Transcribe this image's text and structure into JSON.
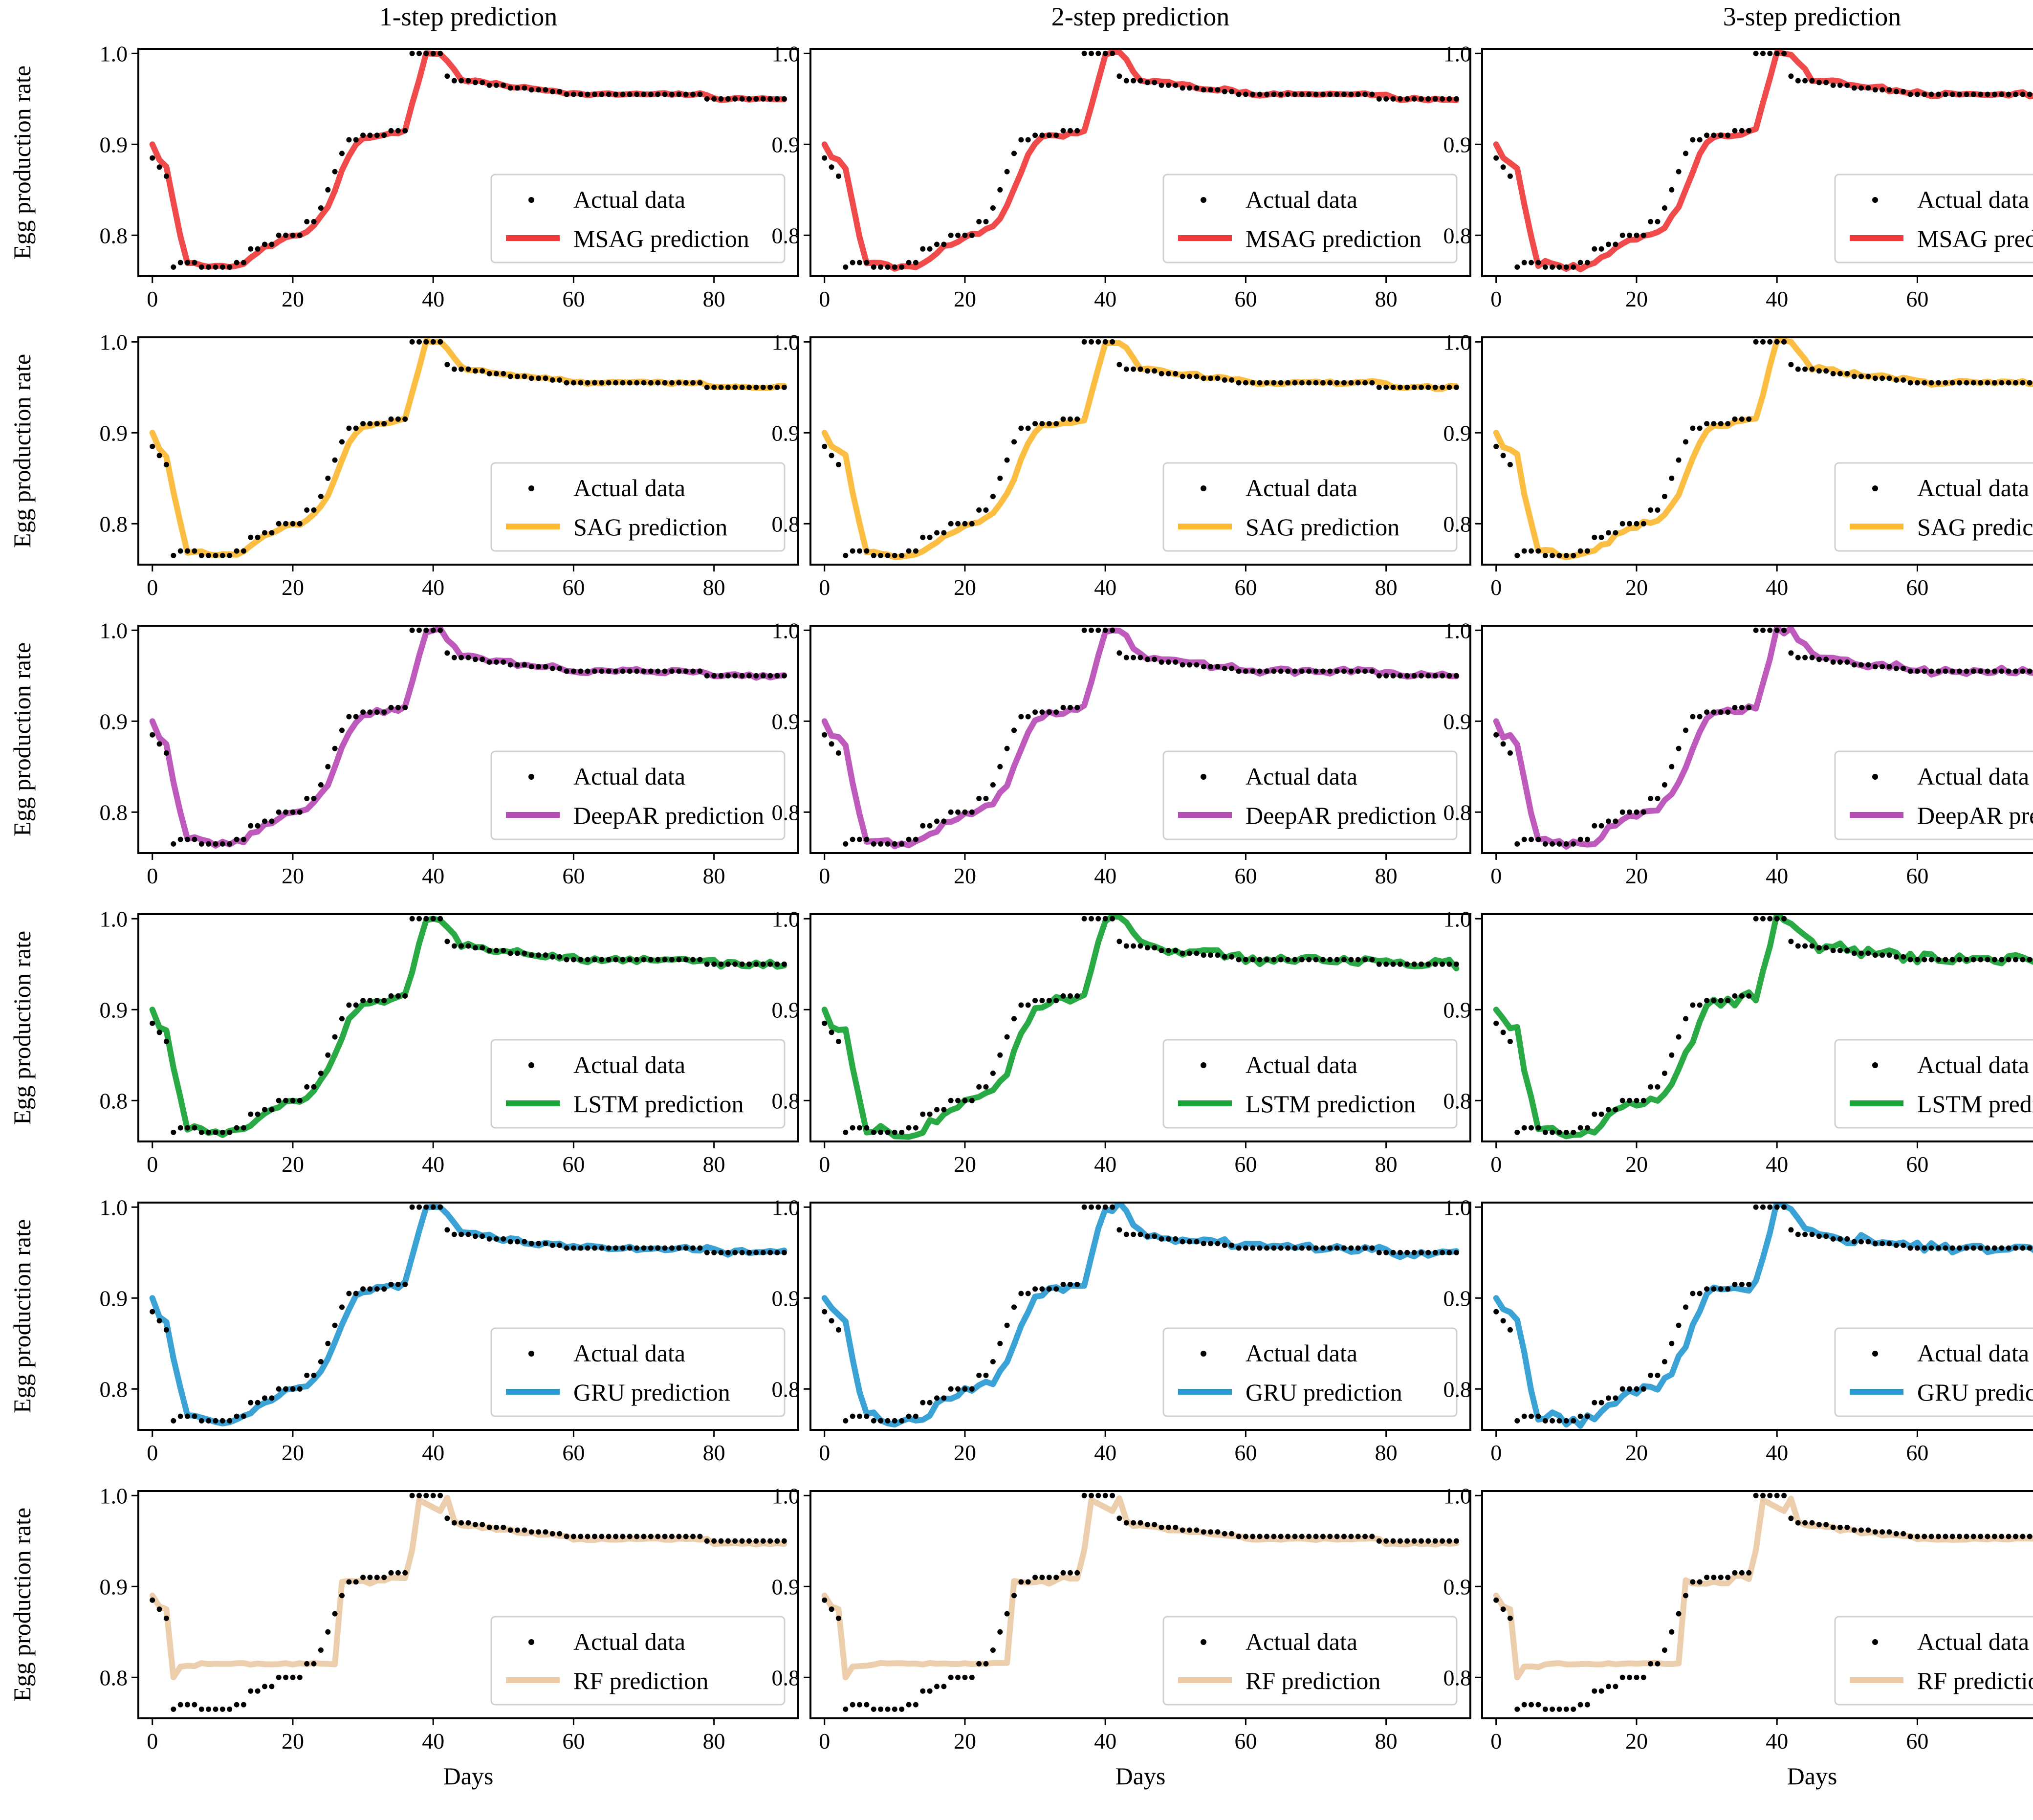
{
  "figure": {
    "column_titles": [
      "1-step prediction",
      "2-step prediction",
      "3-step prediction"
    ],
    "ylabel": "Egg production rate",
    "xlabel": "Days",
    "legend_actual": "Actual data"
  },
  "colors": {
    "actual": "#000000",
    "MSAG": "#ef3b3b",
    "SAG": "#fbb932",
    "DeepAR": "#b84cb5",
    "LSTM": "#17a335",
    "GRU": "#2a9ad1",
    "RF": "#ebcaa5"
  },
  "chart_data": {
    "type": "line",
    "layout": "6 rows (models) x 3 columns (prediction horizon) grid of line charts",
    "xlim": [
      -2,
      92
    ],
    "ylim": [
      0.755,
      1.005
    ],
    "xticks": [
      0,
      20,
      40,
      60,
      80
    ],
    "yticks": [
      0.8,
      0.9,
      1.0
    ],
    "ytick_labels": [
      "0.8",
      "0.9",
      "1.0"
    ],
    "actual": {
      "name": "Actual data",
      "x": [
        0,
        1,
        2,
        3,
        4,
        5,
        6,
        7,
        8,
        9,
        10,
        11,
        12,
        13,
        14,
        15,
        16,
        17,
        18,
        19,
        20,
        21,
        22,
        23,
        24,
        25,
        26,
        27,
        28,
        29,
        30,
        31,
        32,
        33,
        34,
        35,
        36,
        37,
        38,
        39,
        40,
        41,
        42,
        43,
        44,
        45,
        46,
        47,
        48,
        49,
        50,
        51,
        52,
        53,
        54,
        55,
        56,
        57,
        58,
        59,
        60,
        61,
        62,
        63,
        64,
        65,
        66,
        67,
        68,
        69,
        70,
        71,
        72,
        73,
        74,
        75,
        76,
        77,
        78,
        79,
        80,
        81,
        82,
        83,
        84,
        85,
        86,
        87,
        88,
        89,
        90
      ],
      "values": [
        0.885,
        0.875,
        0.865,
        0.765,
        0.77,
        0.77,
        0.77,
        0.765,
        0.765,
        0.765,
        0.765,
        0.765,
        0.77,
        0.77,
        0.785,
        0.785,
        0.79,
        0.79,
        0.8,
        0.8,
        0.8,
        0.8,
        0.815,
        0.815,
        0.83,
        0.85,
        0.87,
        0.89,
        0.905,
        0.905,
        0.91,
        0.91,
        0.91,
        0.91,
        0.915,
        0.915,
        0.915,
        1.0,
        1.0,
        1.0,
        1.0,
        1.0,
        0.975,
        0.97,
        0.97,
        0.97,
        0.968,
        0.968,
        0.965,
        0.965,
        0.965,
        0.962,
        0.962,
        0.962,
        0.96,
        0.96,
        0.96,
        0.958,
        0.958,
        0.955,
        0.955,
        0.955,
        0.955,
        0.955,
        0.955,
        0.955,
        0.955,
        0.955,
        0.955,
        0.955,
        0.955,
        0.955,
        0.955,
        0.955,
        0.955,
        0.955,
        0.955,
        0.955,
        0.955,
        0.95,
        0.95,
        0.95,
        0.95,
        0.95,
        0.95,
        0.95,
        0.95,
        0.95,
        0.95,
        0.95,
        0.95
      ]
    },
    "models": [
      {
        "name": "MSAG prediction",
        "color_key": "MSAG",
        "offsets": [
          4,
          7,
          8
        ],
        "noise": [
          0.0015,
          0.002,
          0.0025
        ],
        "rf": false
      },
      {
        "name": "SAG prediction",
        "color_key": "SAG",
        "offsets": [
          4,
          7,
          8
        ],
        "noise": [
          0.0015,
          0.002,
          0.0025
        ],
        "rf": false
      },
      {
        "name": "DeepAR prediction",
        "color_key": "DeepAR",
        "offsets": [
          4,
          7,
          8
        ],
        "noise": [
          0.0025,
          0.003,
          0.004
        ],
        "rf": false
      },
      {
        "name": "LSTM prediction",
        "color_key": "LSTM",
        "offsets": [
          5,
          8,
          9
        ],
        "noise": [
          0.003,
          0.005,
          0.006
        ],
        "rf": false
      },
      {
        "name": "GRU prediction",
        "color_key": "GRU",
        "offsets": [
          5,
          8,
          9
        ],
        "noise": [
          0.003,
          0.005,
          0.006
        ],
        "rf": false
      },
      {
        "name": "RF prediction",
        "color_key": "RF",
        "offsets": [
          1,
          1,
          1
        ],
        "noise": [
          0.001,
          0.001,
          0.001
        ],
        "rf": true
      }
    ]
  }
}
